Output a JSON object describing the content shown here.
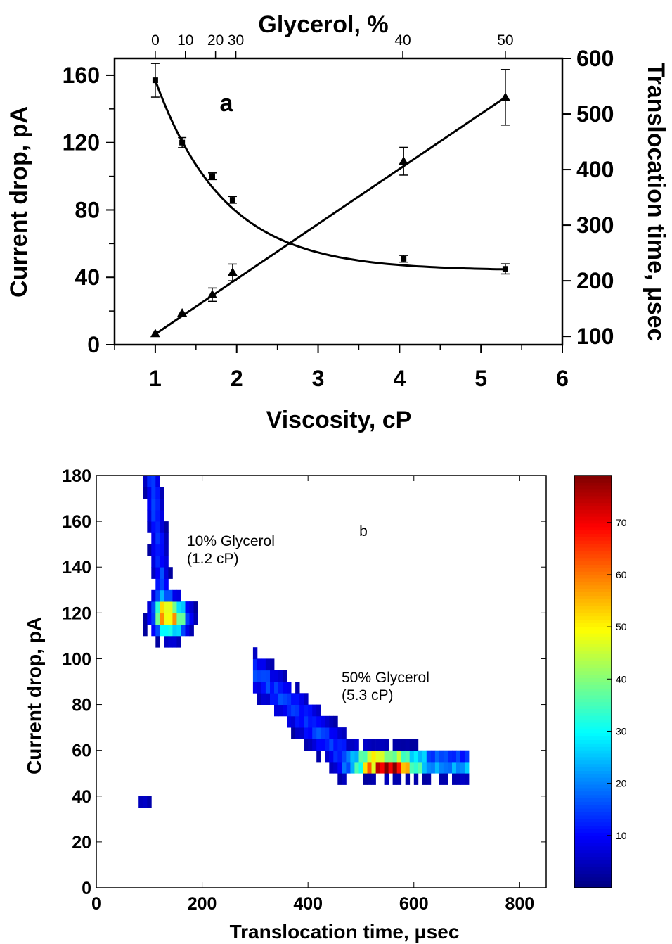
{
  "chart_data": [
    {
      "type": "line",
      "panel_label": "a",
      "xlabel": "Viscosity, cP",
      "ylabel": "Current drop, pA",
      "y2label": "Translocation time, μsec",
      "x2label": "Glycerol, %",
      "xlim": [
        0.5,
        6
      ],
      "ylim": [
        0,
        170
      ],
      "y2lim": [
        85,
        600
      ],
      "xticks": [
        "1",
        "2",
        "3",
        "4",
        "5",
        "6"
      ],
      "yticks": [
        "0",
        "40",
        "80",
        "120",
        "160"
      ],
      "y2ticks": [
        "100",
        "200",
        "300",
        "400",
        "500",
        "600"
      ],
      "x2ticks": [
        {
          "label": "0",
          "x": 1.0
        },
        {
          "label": "10",
          "x": 1.37
        },
        {
          "label": "20",
          "x": 1.74
        },
        {
          "label": "30",
          "x": 1.99
        },
        {
          "label": "40",
          "x": 4.04
        },
        {
          "label": "50",
          "x": 5.3
        }
      ],
      "series": [
        {
          "axis": "left",
          "marker": "square",
          "x": [
            1.0,
            1.33,
            1.7,
            1.95,
            4.05,
            5.3
          ],
          "y": [
            157,
            120,
            100,
            86,
            51,
            45
          ],
          "err": [
            10,
            3,
            2,
            2,
            2,
            3
          ],
          "fit": "exponential decay"
        },
        {
          "axis": "right",
          "marker": "triangle",
          "x": [
            1.0,
            1.33,
            1.7,
            1.95,
            4.05,
            5.3
          ],
          "y": [
            105,
            142,
            175,
            215,
            415,
            530
          ],
          "err": [
            0,
            0,
            12,
            15,
            25,
            50
          ],
          "fit": "linear"
        }
      ]
    },
    {
      "type": "heatmap",
      "panel_label": "b",
      "xlabel": "Translocation time,  μsec",
      "ylabel": "Current drop,  pA",
      "xlim": [
        0,
        850
      ],
      "ylim": [
        0,
        180
      ],
      "xticks": [
        "0",
        "200",
        "400",
        "600",
        "800"
      ],
      "yticks": [
        "0",
        "20",
        "40",
        "60",
        "80",
        "100",
        "120",
        "140",
        "160",
        "180"
      ],
      "colorbar": {
        "min": 0,
        "max": 79,
        "ticks": [
          "10",
          "20",
          "30",
          "40",
          "50",
          "60",
          "70"
        ],
        "colormap": "jet"
      },
      "clusters": [
        {
          "label": "10% Glycerol",
          "sublabel": "(1.2 cP)",
          "peak_x": 140,
          "peak_y": 118,
          "peak_count": 65
        },
        {
          "label": "50% Glycerol",
          "sublabel": "(5.3 cP)",
          "peak_x": 550,
          "peak_y": 54,
          "peak_count": 72
        },
        {
          "label": "",
          "peak_x": 90,
          "peak_y": 39,
          "peak_count": 8
        }
      ]
    }
  ]
}
